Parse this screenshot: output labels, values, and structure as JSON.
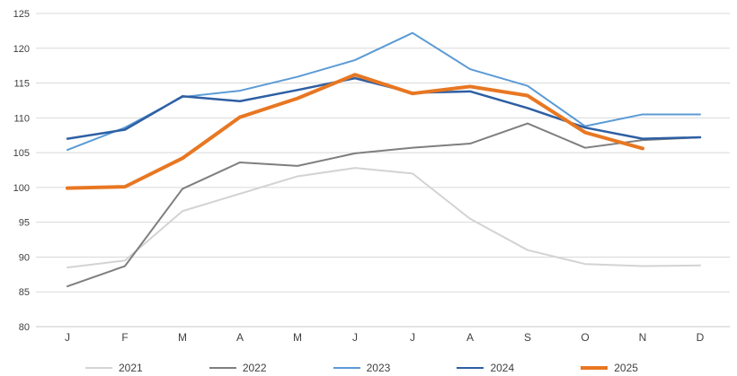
{
  "chart_data": {
    "type": "line",
    "title": "",
    "xlabel": "",
    "ylabel": "",
    "categories": [
      "J",
      "F",
      "M",
      "A",
      "M",
      "J",
      "J",
      "A",
      "S",
      "O",
      "N",
      "D"
    ],
    "ylim": [
      80,
      125
    ],
    "ytick_step": 5,
    "grid": true,
    "legend_position": "bottom",
    "colors": {
      "grid": "#d9d9d9",
      "tick_text": "#404040"
    },
    "series": [
      {
        "name": "2021",
        "color": "#d3d3d3",
        "width": 2,
        "values": [
          88.5,
          89.5,
          96.6,
          99.1,
          101.6,
          102.8,
          102.0,
          95.5,
          91.0,
          89.0,
          88.7,
          88.8
        ]
      },
      {
        "name": "2022",
        "color": "#7f7f7f",
        "width": 2,
        "values": [
          85.8,
          88.7,
          99.8,
          103.6,
          103.1,
          104.9,
          105.7,
          106.3,
          109.2,
          105.7,
          106.8,
          107.2
        ]
      },
      {
        "name": "2023",
        "color": "#5b9bd5",
        "width": 2,
        "values": [
          105.4,
          108.6,
          113.0,
          113.9,
          115.9,
          118.3,
          122.2,
          117.0,
          114.6,
          108.8,
          110.5,
          110.5
        ]
      },
      {
        "name": "2024",
        "color": "#2e5fa3",
        "width": 2.5,
        "values": [
          107.0,
          108.3,
          113.1,
          112.4,
          114.0,
          115.7,
          113.6,
          113.8,
          111.4,
          108.6,
          107.0,
          107.2
        ]
      },
      {
        "name": "2025",
        "color": "#e87722",
        "width": 4,
        "values": [
          99.9,
          100.1,
          104.2,
          110.1,
          112.8,
          116.2,
          113.5,
          114.5,
          113.2,
          107.9,
          105.6,
          null
        ]
      }
    ]
  }
}
